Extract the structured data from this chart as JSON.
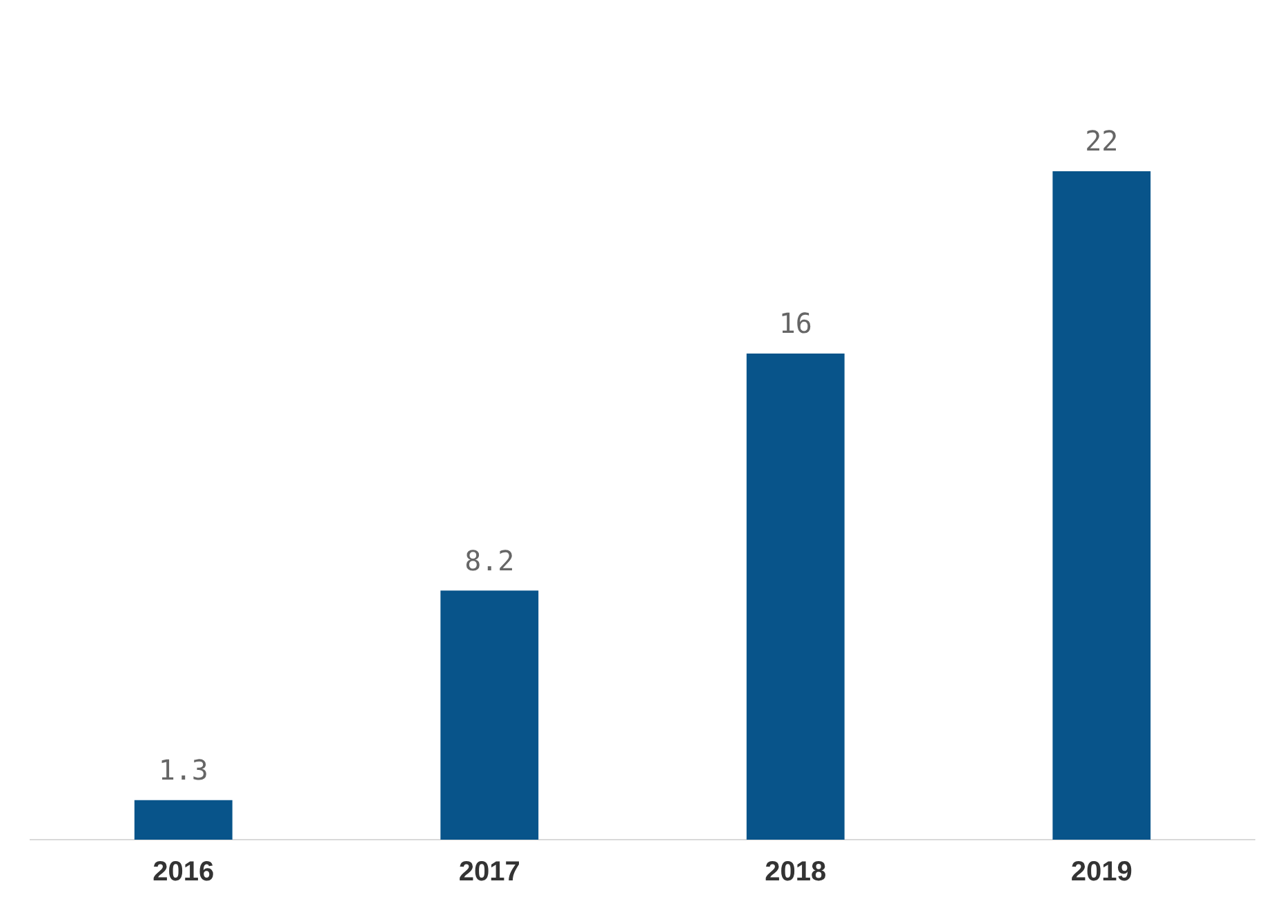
{
  "chart_data": {
    "type": "bar",
    "categories": [
      "2016",
      "2017",
      "2018",
      "2019"
    ],
    "values": [
      1.3,
      8.2,
      16,
      22
    ],
    "color": "#08548a",
    "data_labels": true,
    "tick_labels": "x",
    "grid": false,
    "legend": false
  }
}
